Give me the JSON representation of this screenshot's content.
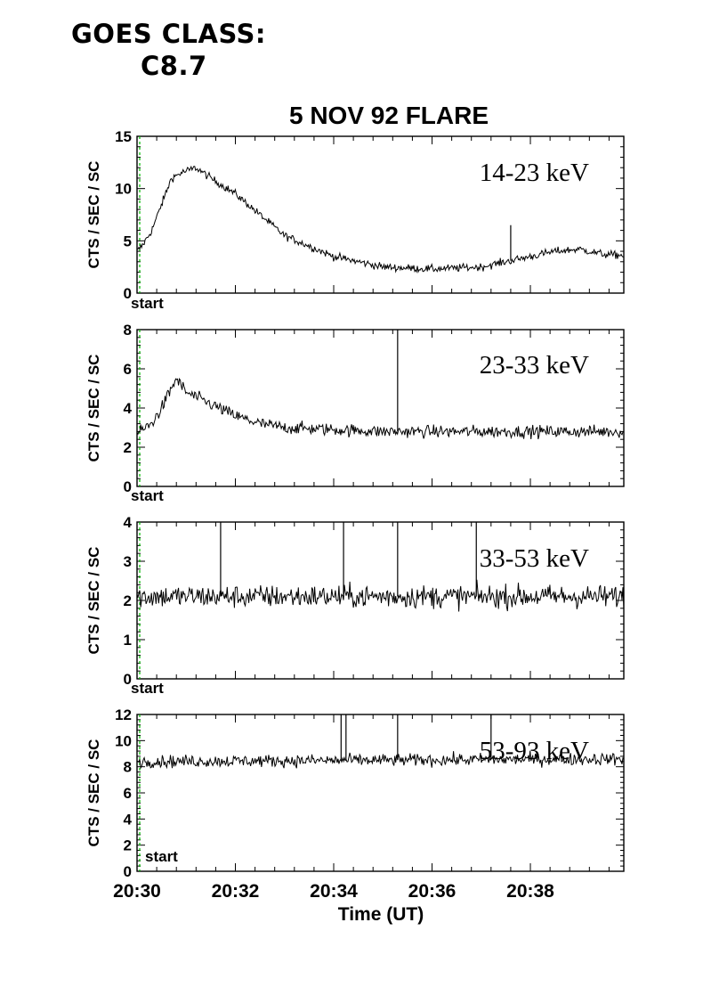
{
  "header": {
    "goes_label": "GOES CLASS:",
    "goes_value": "C8.7"
  },
  "chart_data": {
    "type": "line",
    "title": "5 NOV 92 FLARE",
    "xlabel": "Time (UT)",
    "x_ticks": [
      "20:30",
      "20:32",
      "20:34",
      "20:36",
      "20:38"
    ],
    "xlim_minutes": [
      0,
      9.9
    ],
    "ylabel": "CTS / SEC / SC",
    "start_marker_label": "start",
    "start_marker_color": "#00bb00",
    "line_color": "#000000",
    "grid": false,
    "panels": [
      {
        "name": "14-23 keV",
        "ylim": [
          0,
          15
        ],
        "yticks": [
          0,
          5,
          10,
          15
        ],
        "profile": [
          [
            0,
            4
          ],
          [
            0.1,
            4.5
          ],
          [
            0.3,
            6
          ],
          [
            0.5,
            8.5
          ],
          [
            0.7,
            11
          ],
          [
            0.9,
            11.5
          ],
          [
            1.2,
            12
          ],
          [
            1.5,
            11
          ],
          [
            2,
            9.5
          ],
          [
            2.5,
            7.5
          ],
          [
            3,
            5.5
          ],
          [
            4,
            3.5
          ],
          [
            5,
            2.5
          ],
          [
            6,
            2.3
          ],
          [
            7,
            2.5
          ],
          [
            7.5,
            3
          ],
          [
            8,
            3.5
          ],
          [
            8.5,
            4
          ],
          [
            9,
            4.2
          ],
          [
            9.5,
            3.7
          ],
          [
            9.9,
            3.6
          ]
        ],
        "noise": 0.35,
        "spikes": [
          [
            7.6,
            6.5
          ]
        ]
      },
      {
        "name": "23-33 keV",
        "ylim": [
          0,
          8
        ],
        "yticks": [
          0,
          2,
          4,
          6,
          8
        ],
        "profile": [
          [
            0,
            2.7
          ],
          [
            0.3,
            3.2
          ],
          [
            0.5,
            4
          ],
          [
            0.7,
            5
          ],
          [
            0.8,
            5.5
          ],
          [
            1,
            4.8
          ],
          [
            1.5,
            4.2
          ],
          [
            2,
            3.6
          ],
          [
            2.5,
            3.2
          ],
          [
            3,
            3
          ],
          [
            5,
            2.8
          ],
          [
            9.9,
            2.8
          ]
        ],
        "noise": 0.3,
        "spikes": [
          [
            5.3,
            8
          ]
        ]
      },
      {
        "name": "33-53 keV",
        "ylim": [
          0,
          4
        ],
        "yticks": [
          0,
          1,
          2,
          3,
          4
        ],
        "profile": [
          [
            0,
            2.1
          ],
          [
            9.9,
            2.1
          ]
        ],
        "noise": 0.28,
        "spikes": [
          [
            1.7,
            4
          ],
          [
            4.2,
            4
          ],
          [
            5.3,
            4
          ],
          [
            6.9,
            4
          ]
        ]
      },
      {
        "name": "53-93 keV",
        "ylim": [
          0,
          12
        ],
        "yticks": [
          0,
          2,
          4,
          6,
          8,
          10,
          12
        ],
        "profile": [
          [
            0,
            8.4
          ],
          [
            9.9,
            8.6
          ]
        ],
        "noise": 0.45,
        "spikes": [
          [
            4.15,
            12
          ],
          [
            4.25,
            12
          ],
          [
            5.3,
            12
          ],
          [
            7.2,
            12
          ]
        ]
      }
    ]
  }
}
